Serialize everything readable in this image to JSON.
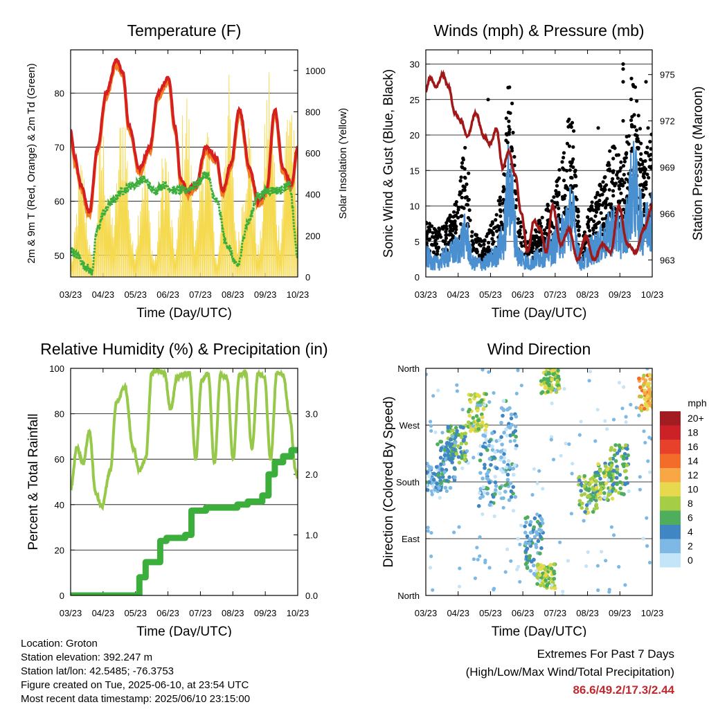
{
  "x_ticks": [
    "03/23",
    "04/23",
    "05/23",
    "06/23",
    "07/23",
    "08/23",
    "09/23",
    "10/23"
  ],
  "colors": {
    "temp2m": "#d62020",
    "temp9m": "#f27b20",
    "dewpoint": "#3cae3c",
    "solar": "#f5d94e",
    "sonic": "#4a90d0",
    "gust": "#000000",
    "pressure": "#a01818",
    "rh": "#96c84a",
    "rain": "#3cae3c"
  },
  "chart_data": [
    {
      "type": "line",
      "id": "temperature",
      "title": "Temperature (F)",
      "xlabel": "Time (Day/UTC)",
      "ylabel": "2m & 9m T (Red, Orange) & 2m Td (Green)",
      "y2label": "Solar Insolation (Yellow)",
      "ylim": [
        46,
        88
      ],
      "yticks": [
        50,
        60,
        70,
        80
      ],
      "y2lim": [
        0,
        1100
      ],
      "y2ticks": [
        0,
        200,
        400,
        600,
        800,
        1000
      ],
      "grid": true,
      "series": [
        {
          "key": "temp2m",
          "x": [
            0,
            0.2,
            0.5,
            0.9,
            1.3,
            1.7,
            2.2,
            2.5,
            2.8,
            3.3,
            3.8,
            4.2,
            4.7,
            5.0,
            5.3,
            5.6,
            6.0,
            6.5,
            7.0,
            7.3,
            7.7,
            8.1,
            8.6,
            9.0,
            9.4,
            9.8,
            10.2,
            10.6,
            10.9
          ],
          "y": [
            73,
            68,
            63,
            58,
            70,
            80,
            86,
            84,
            74,
            66,
            70,
            80,
            83,
            74,
            64,
            62,
            63,
            70,
            68,
            62,
            67,
            77,
            66,
            60,
            62,
            77,
            66,
            63,
            70
          ]
        },
        {
          "key": "dewpoint",
          "x": [
            0,
            0.3,
            0.7,
            1.0,
            1.3,
            1.6,
            2.0,
            2.5,
            3.0,
            3.5,
            4.0,
            4.5,
            5.0,
            5.5,
            6.0,
            6.5,
            7.0,
            7.5,
            8.0,
            8.5,
            9.0,
            9.5,
            10.0,
            10.5,
            10.9
          ],
          "y": [
            51,
            50,
            48,
            47,
            55,
            58,
            60,
            62,
            63,
            64,
            62,
            63,
            62,
            62,
            63,
            65,
            60,
            52,
            48,
            56,
            61,
            62,
            62,
            63,
            50
          ]
        },
        {
          "key": "solar",
          "x": [
            0,
            0.5,
            1.0,
            1.5,
            2.0,
            2.5,
            3.0,
            3.5,
            4.0,
            4.5,
            5.0,
            5.5,
            6.0,
            6.5,
            7.0,
            7.5,
            8.0,
            8.5,
            9.0,
            9.5,
            10.0,
            10.5,
            10.9
          ],
          "y": [
            100,
            550,
            100,
            700,
            300,
            850,
            150,
            600,
            100,
            650,
            150,
            900,
            250,
            800,
            100,
            950,
            200,
            750,
            150,
            1000,
            250,
            1000,
            300
          ]
        }
      ]
    },
    {
      "type": "line",
      "id": "winds",
      "title": "Winds (mph) & Pressure (mb)",
      "xlabel": "Time (Day/UTC)",
      "ylabel": "Sonic Wind & Gust (Blue, Black)",
      "y2label": "Station Pressure (Maroon)",
      "ylim": [
        0,
        32
      ],
      "yticks": [
        0,
        5,
        10,
        15,
        20,
        25,
        30
      ],
      "y2lim": [
        961.9,
        976.6
      ],
      "y2ticks": [
        963,
        966,
        969,
        972,
        975
      ],
      "grid": true,
      "series": [
        {
          "key": "pressure",
          "x": [
            0,
            0.2,
            0.5,
            0.8,
            1.1,
            1.4,
            1.7,
            2.0,
            2.4,
            2.8,
            3.1,
            3.4,
            3.7,
            4.0,
            4.3,
            4.6,
            4.9,
            5.2,
            5.5,
            5.8,
            6.1,
            6.5,
            6.9,
            7.3,
            7.7,
            8.1,
            8.5,
            8.9,
            9.3,
            9.7,
            10.1,
            10.5,
            10.9
          ],
          "y": [
            974.0,
            974.8,
            974.2,
            975.0,
            974.2,
            972.5,
            972.0,
            971.0,
            972.5,
            971.0,
            970.5,
            971.5,
            969.0,
            970.0,
            968.5,
            966.0,
            963.5,
            965.5,
            965.0,
            963.5,
            966.5,
            964.0,
            965.0,
            963.0,
            964.5,
            963.0,
            964.0,
            963.5,
            966.5,
            964.0,
            963.5,
            965.0,
            966.5
          ]
        },
        {
          "key": "gust",
          "x": [
            0,
            0.5,
            1.0,
            1.5,
            1.9,
            2.3,
            2.8,
            3.3,
            3.7,
            4.0,
            4.5,
            5.0,
            5.5,
            6.0,
            6.5,
            7.0,
            7.5,
            8.0,
            8.5,
            9.0,
            9.5,
            10.0,
            10.5,
            10.9
          ],
          "y": [
            6,
            5,
            6,
            8,
            14,
            5,
            4,
            6,
            10,
            22,
            6,
            4,
            6,
            8,
            12,
            18,
            4,
            8,
            10,
            14,
            12,
            22,
            13,
            16
          ]
        },
        {
          "key": "sonic",
          "x": [
            0,
            0.5,
            1.0,
            1.5,
            1.9,
            2.3,
            2.8,
            3.3,
            3.7,
            4.0,
            4.5,
            5.0,
            5.5,
            6.0,
            6.5,
            7.0,
            7.5,
            8.0,
            8.5,
            9.0,
            9.5,
            10.0,
            10.5,
            10.9
          ],
          "y": [
            3,
            2,
            3,
            4,
            6,
            2,
            2,
            3,
            5,
            13,
            3,
            2,
            3,
            4,
            6,
            9,
            2,
            4,
            5,
            7,
            6,
            13,
            7,
            9
          ]
        }
      ]
    },
    {
      "type": "line",
      "id": "humidity",
      "title": "Relative Humidity (%) & Precipitation (in)",
      "xlabel": "Time (Day/UTC)",
      "ylabel": "Percent & Total Rainfall",
      "ylim": [
        0,
        100
      ],
      "yticks": [
        0,
        20,
        40,
        60,
        80,
        100
      ],
      "y2lim": [
        0,
        3.75
      ],
      "y2ticks": [
        "0.0",
        "1.0",
        "2.0",
        "3.0"
      ],
      "grid": true,
      "series": [
        {
          "key": "rh",
          "x": [
            0,
            0.3,
            0.6,
            0.9,
            1.2,
            1.5,
            1.9,
            2.2,
            2.6,
            3.0,
            3.3,
            3.6,
            3.9,
            4.2,
            4.5,
            4.8,
            5.1,
            5.4,
            5.7,
            6.0,
            6.3,
            6.6,
            6.9,
            7.2,
            7.5,
            7.8,
            8.1,
            8.4,
            8.7,
            9.0,
            9.3,
            9.6,
            9.9,
            10.2,
            10.5,
            10.8,
            10.9
          ],
          "y": [
            47,
            65,
            58,
            72,
            45,
            39,
            55,
            85,
            92,
            65,
            55,
            60,
            98,
            99,
            98,
            82,
            96,
            97,
            98,
            60,
            95,
            98,
            58,
            97,
            96,
            60,
            97,
            98,
            65,
            98,
            96,
            60,
            98,
            97,
            80,
            55,
            52
          ]
        },
        {
          "key": "rain",
          "x": [
            0,
            3.2,
            3.3,
            3.6,
            4.0,
            4.3,
            4.6,
            5.0,
            5.5,
            5.8,
            6.5,
            7.0,
            7.5,
            8.0,
            8.5,
            9.0,
            9.2,
            9.5,
            9.8,
            10.2,
            10.6,
            10.9
          ],
          "y": [
            0,
            0,
            0.3,
            0.55,
            0.55,
            0.9,
            0.95,
            0.95,
            1.0,
            1.4,
            1.45,
            1.45,
            1.45,
            1.5,
            1.55,
            1.55,
            1.65,
            2.0,
            2.2,
            2.3,
            2.4,
            2.45
          ]
        }
      ]
    },
    {
      "type": "scatter",
      "id": "direction",
      "title": "Wind Direction",
      "xlabel": "Time (Day/UTC)",
      "ylabel": "Direction (Colored By Speed)",
      "yticks": [
        "North",
        "East",
        "South",
        "West",
        "North"
      ],
      "legend": {
        "title": "mph",
        "labels": [
          "20+",
          "18",
          "16",
          "14",
          "12",
          "10",
          "8",
          "6",
          "4",
          "2",
          "0"
        ],
        "colors": [
          "#a31c20",
          "#cc2127",
          "#e8412b",
          "#f46c29",
          "#f9a744",
          "#e6d94d",
          "#a5cd45",
          "#4fae5b",
          "#3f86c3",
          "#7db9e4",
          "#c4e4f7"
        ],
        "position": "right"
      },
      "groups": [
        {
          "x_center": 0.3,
          "dir_center": 185,
          "spread": 20,
          "speed": 3
        },
        {
          "x_center": 1.0,
          "dir_center": 210,
          "spread": 40,
          "speed": 4
        },
        {
          "x_center": 1.5,
          "dir_center": 240,
          "spread": 30,
          "speed": 6
        },
        {
          "x_center": 2.5,
          "dir_center": 290,
          "spread": 30,
          "speed": 8
        },
        {
          "x_center": 3.0,
          "dir_center": 200,
          "spread": 60,
          "speed": 3
        },
        {
          "x_center": 4.0,
          "dir_center": 230,
          "spread": 80,
          "speed": 3
        },
        {
          "x_center": 5.2,
          "dir_center": 80,
          "spread": 50,
          "speed": 4
        },
        {
          "x_center": 5.8,
          "dir_center": 30,
          "spread": 20,
          "speed": 8
        },
        {
          "x_center": 6.0,
          "dir_center": 340,
          "spread": 20,
          "speed": 8
        },
        {
          "x_center": 7.8,
          "dir_center": 160,
          "spread": 30,
          "speed": 7
        },
        {
          "x_center": 8.6,
          "dir_center": 180,
          "spread": 30,
          "speed": 7
        },
        {
          "x_center": 9.3,
          "dir_center": 200,
          "spread": 40,
          "speed": 6
        },
        {
          "x_center": 10.7,
          "dir_center": 320,
          "spread": 30,
          "speed": 11
        }
      ]
    }
  ],
  "info": {
    "location": "Location: Groton",
    "elevation": "Station elevation: 392.247 m",
    "latlon": "Station lat/lon: 42.5485; -76.3753",
    "created": "Figure created on Tue, 2025-06-10, at 23:54 UTC",
    "recent": "Most recent data timestamp: 2025/06/10 23:15:00"
  },
  "extremes": {
    "title": "Extremes For Past 7 Days",
    "subtitle": "(High/Low/Max Wind/Total Precipitation)",
    "values": "86.6/49.2/17.3/2.44"
  }
}
